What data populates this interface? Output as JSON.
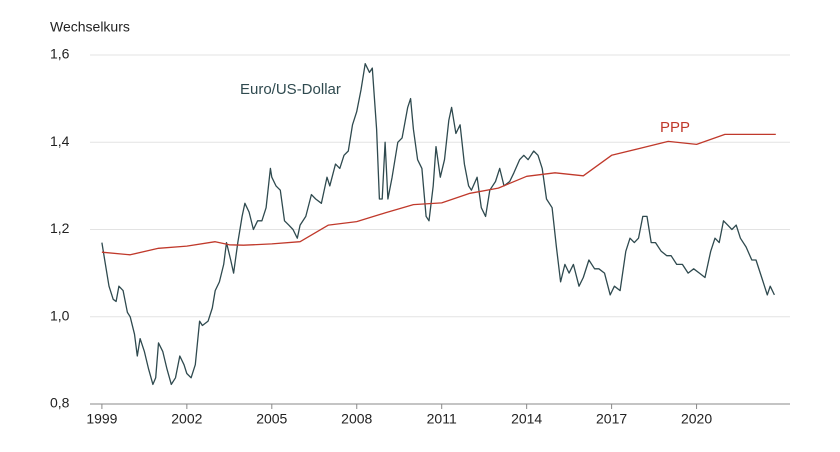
{
  "chart_data": {
    "type": "line",
    "y_label": "Wechselkurs",
    "xlim": [
      1998.58,
      2023.3
    ],
    "xticks": [
      1999,
      2002,
      2005,
      2008,
      2011,
      2014,
      2017,
      2020
    ],
    "ylim": [
      0.8,
      1.6
    ],
    "yticks": [
      {
        "value": 0.8,
        "label": "0,8"
      },
      {
        "value": 1.0,
        "label": "1,0"
      },
      {
        "value": 1.2,
        "label": "1,2"
      },
      {
        "value": 1.4,
        "label": "1,4"
      },
      {
        "value": 1.6,
        "label": "1,6"
      }
    ],
    "grid": true,
    "series": [
      {
        "name": "Euro/US-Dollar",
        "color": "#2f4a4f",
        "x": [
          1999.0,
          1999.1,
          1999.25,
          1999.4,
          1999.5,
          1999.6,
          1999.75,
          1999.9,
          2000.0,
          2000.15,
          2000.25,
          2000.35,
          2000.5,
          2000.65,
          2000.8,
          2000.9,
          2001.0,
          2001.15,
          2001.3,
          2001.45,
          2001.6,
          2001.75,
          2001.9,
          2002.0,
          2002.15,
          2002.3,
          2002.45,
          2002.55,
          2002.75,
          2002.9,
          2003.0,
          2003.15,
          2003.3,
          2003.4,
          2003.55,
          2003.65,
          2003.8,
          2003.95,
          2004.05,
          2004.2,
          2004.35,
          2004.5,
          2004.65,
          2004.8,
          2004.95,
          2005.0,
          2005.15,
          2005.3,
          2005.45,
          2005.6,
          2005.75,
          2005.9,
          2006.0,
          2006.2,
          2006.4,
          2006.55,
          2006.75,
          2006.95,
          2007.05,
          2007.25,
          2007.4,
          2007.55,
          2007.7,
          2007.85,
          2008.0,
          2008.15,
          2008.3,
          2008.45,
          2008.55,
          2008.7,
          2008.8,
          2008.9,
          2009.0,
          2009.1,
          2009.25,
          2009.45,
          2009.6,
          2009.8,
          2009.9,
          2010.0,
          2010.15,
          2010.3,
          2010.45,
          2010.55,
          2010.7,
          2010.8,
          2010.95,
          2011.1,
          2011.25,
          2011.35,
          2011.5,
          2011.65,
          2011.8,
          2011.95,
          2012.05,
          2012.25,
          2012.4,
          2012.55,
          2012.7,
          2012.9,
          2013.05,
          2013.2,
          2013.4,
          2013.55,
          2013.75,
          2013.9,
          2014.05,
          2014.25,
          2014.4,
          2014.55,
          2014.7,
          2014.9,
          2015.05,
          2015.2,
          2015.35,
          2015.5,
          2015.65,
          2015.85,
          2016.0,
          2016.2,
          2016.4,
          2016.55,
          2016.75,
          2016.95,
          2017.1,
          2017.3,
          2017.5,
          2017.65,
          2017.8,
          2017.95,
          2018.1,
          2018.25,
          2018.4,
          2018.55,
          2018.75,
          2018.95,
          2019.1,
          2019.3,
          2019.5,
          2019.7,
          2019.9,
          2020.1,
          2020.3,
          2020.5,
          2020.65,
          2020.8,
          2020.95,
          2021.1,
          2021.25,
          2021.4,
          2021.55,
          2021.75,
          2021.95,
          2022.1,
          2022.3,
          2022.5,
          2022.6,
          2022.75
        ],
        "values": [
          1.17,
          1.13,
          1.07,
          1.04,
          1.035,
          1.07,
          1.06,
          1.01,
          1.0,
          0.96,
          0.91,
          0.95,
          0.92,
          0.88,
          0.845,
          0.86,
          0.94,
          0.92,
          0.88,
          0.845,
          0.86,
          0.91,
          0.89,
          0.87,
          0.86,
          0.89,
          0.99,
          0.98,
          0.99,
          1.02,
          1.06,
          1.08,
          1.12,
          1.17,
          1.13,
          1.1,
          1.17,
          1.23,
          1.26,
          1.24,
          1.2,
          1.22,
          1.22,
          1.25,
          1.34,
          1.32,
          1.3,
          1.29,
          1.22,
          1.21,
          1.2,
          1.18,
          1.21,
          1.23,
          1.28,
          1.27,
          1.26,
          1.32,
          1.3,
          1.35,
          1.34,
          1.37,
          1.38,
          1.44,
          1.47,
          1.52,
          1.58,
          1.56,
          1.57,
          1.43,
          1.27,
          1.27,
          1.4,
          1.27,
          1.32,
          1.4,
          1.41,
          1.48,
          1.5,
          1.43,
          1.36,
          1.34,
          1.23,
          1.22,
          1.3,
          1.39,
          1.32,
          1.36,
          1.45,
          1.48,
          1.42,
          1.44,
          1.35,
          1.3,
          1.29,
          1.32,
          1.25,
          1.23,
          1.29,
          1.31,
          1.34,
          1.3,
          1.31,
          1.33,
          1.36,
          1.37,
          1.36,
          1.38,
          1.37,
          1.34,
          1.27,
          1.25,
          1.16,
          1.08,
          1.12,
          1.1,
          1.12,
          1.07,
          1.09,
          1.13,
          1.11,
          1.11,
          1.1,
          1.05,
          1.07,
          1.06,
          1.15,
          1.18,
          1.17,
          1.18,
          1.23,
          1.23,
          1.17,
          1.17,
          1.15,
          1.14,
          1.14,
          1.12,
          1.12,
          1.1,
          1.11,
          1.1,
          1.09,
          1.15,
          1.18,
          1.17,
          1.22,
          1.21,
          1.2,
          1.21,
          1.18,
          1.16,
          1.13,
          1.13,
          1.09,
          1.05,
          1.07,
          1.05
        ]
      },
      {
        "name": "PPP",
        "color": "#c0392b",
        "x": [
          1999,
          2000,
          2001,
          2002,
          2003,
          2003.5,
          2004,
          2005,
          2006,
          2007,
          2008,
          2009,
          2010,
          2011,
          2012,
          2013,
          2014,
          2015,
          2016,
          2017,
          2018,
          2019,
          2020,
          2021,
          2022.8
        ],
        "values": [
          1.148,
          1.142,
          1.157,
          1.162,
          1.172,
          1.165,
          1.164,
          1.167,
          1.172,
          1.21,
          1.218,
          1.238,
          1.257,
          1.261,
          1.283,
          1.295,
          1.322,
          1.33,
          1.323,
          1.37,
          1.386,
          1.402,
          1.395,
          1.418,
          1.418
        ]
      }
    ]
  }
}
